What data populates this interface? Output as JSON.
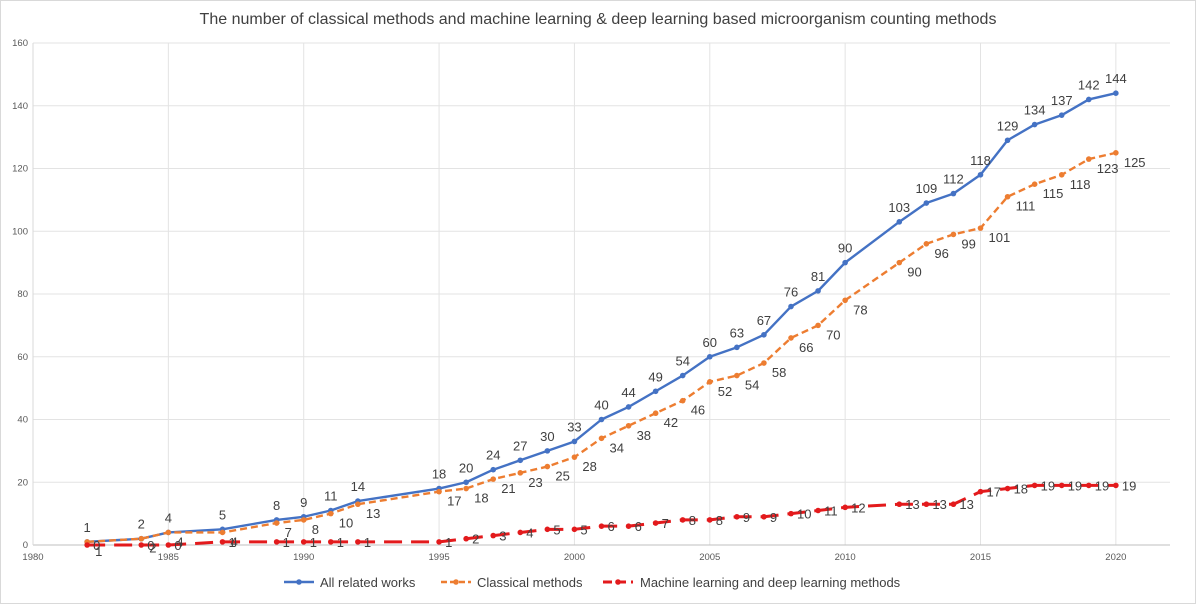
{
  "chart_data": {
    "type": "line",
    "title": "The  number of classical methods and machine learning & deep learning based microorganism counting methods",
    "xlabel": "",
    "ylabel": "",
    "xlim": [
      1980,
      2022
    ],
    "ylim": [
      0,
      160
    ],
    "xticks": [
      1980,
      1985,
      1990,
      1995,
      2000,
      2005,
      2010,
      2015,
      2020
    ],
    "yticks": [
      0,
      20,
      40,
      60,
      80,
      100,
      120,
      140,
      160
    ],
    "grid": true,
    "legend_position": "bottom",
    "series": [
      {
        "name": "All related works",
        "color": "#4472c4",
        "style": "solid",
        "points": [
          [
            1982,
            1
          ],
          [
            1984,
            2
          ],
          [
            1985,
            4
          ],
          [
            1987,
            5
          ],
          [
            1989,
            8
          ],
          [
            1990,
            9
          ],
          [
            1991,
            11
          ],
          [
            1992,
            14
          ],
          [
            1995,
            18
          ],
          [
            1996,
            20
          ],
          [
            1997,
            24
          ],
          [
            1998,
            27
          ],
          [
            1999,
            30
          ],
          [
            2000,
            33
          ],
          [
            2001,
            40
          ],
          [
            2002,
            44
          ],
          [
            2003,
            49
          ],
          [
            2004,
            54
          ],
          [
            2005,
            60
          ],
          [
            2006,
            63
          ],
          [
            2007,
            67
          ],
          [
            2008,
            76
          ],
          [
            2009,
            81
          ],
          [
            2010,
            90
          ],
          [
            2012,
            103
          ],
          [
            2013,
            109
          ],
          [
            2014,
            112
          ],
          [
            2015,
            118
          ],
          [
            2016,
            129
          ],
          [
            2017,
            134
          ],
          [
            2018,
            137
          ],
          [
            2019,
            142
          ],
          [
            2020,
            144
          ]
        ]
      },
      {
        "name": "Classical methods",
        "color": "#ed7d31",
        "style": "dashed",
        "points": [
          [
            1982,
            1
          ],
          [
            1984,
            2
          ],
          [
            1985,
            4
          ],
          [
            1987,
            4
          ],
          [
            1989,
            7
          ],
          [
            1990,
            8
          ],
          [
            1991,
            10
          ],
          [
            1992,
            13
          ],
          [
            1995,
            17
          ],
          [
            1996,
            18
          ],
          [
            1997,
            21
          ],
          [
            1998,
            23
          ],
          [
            1999,
            25
          ],
          [
            2000,
            28
          ],
          [
            2001,
            34
          ],
          [
            2002,
            38
          ],
          [
            2003,
            42
          ],
          [
            2004,
            46
          ],
          [
            2005,
            52
          ],
          [
            2006,
            54
          ],
          [
            2007,
            58
          ],
          [
            2008,
            66
          ],
          [
            2009,
            70
          ],
          [
            2010,
            78
          ],
          [
            2012,
            90
          ],
          [
            2013,
            96
          ],
          [
            2014,
            99
          ],
          [
            2015,
            101
          ],
          [
            2016,
            111
          ],
          [
            2017,
            115
          ],
          [
            2018,
            118
          ],
          [
            2019,
            123
          ],
          [
            2020,
            125
          ]
        ]
      },
      {
        "name": "Machine learning and deep learning methods",
        "color": "#e31a1c",
        "style": "longdash",
        "points": [
          [
            1982,
            0
          ],
          [
            1984,
            0
          ],
          [
            1985,
            0
          ],
          [
            1987,
            1
          ],
          [
            1989,
            1
          ],
          [
            1990,
            1
          ],
          [
            1991,
            1
          ],
          [
            1992,
            1
          ],
          [
            1995,
            1
          ],
          [
            1996,
            2
          ],
          [
            1997,
            3
          ],
          [
            1998,
            4
          ],
          [
            1999,
            5
          ],
          [
            2000,
            5
          ],
          [
            2001,
            6
          ],
          [
            2002,
            6
          ],
          [
            2003,
            7
          ],
          [
            2004,
            8
          ],
          [
            2005,
            8
          ],
          [
            2006,
            9
          ],
          [
            2007,
            9
          ],
          [
            2008,
            10
          ],
          [
            2009,
            11
          ],
          [
            2010,
            12
          ],
          [
            2012,
            13
          ],
          [
            2013,
            13
          ],
          [
            2014,
            13
          ],
          [
            2015,
            17
          ],
          [
            2016,
            18
          ],
          [
            2017,
            19
          ],
          [
            2018,
            19
          ],
          [
            2019,
            19
          ],
          [
            2020,
            19
          ]
        ]
      }
    ]
  }
}
